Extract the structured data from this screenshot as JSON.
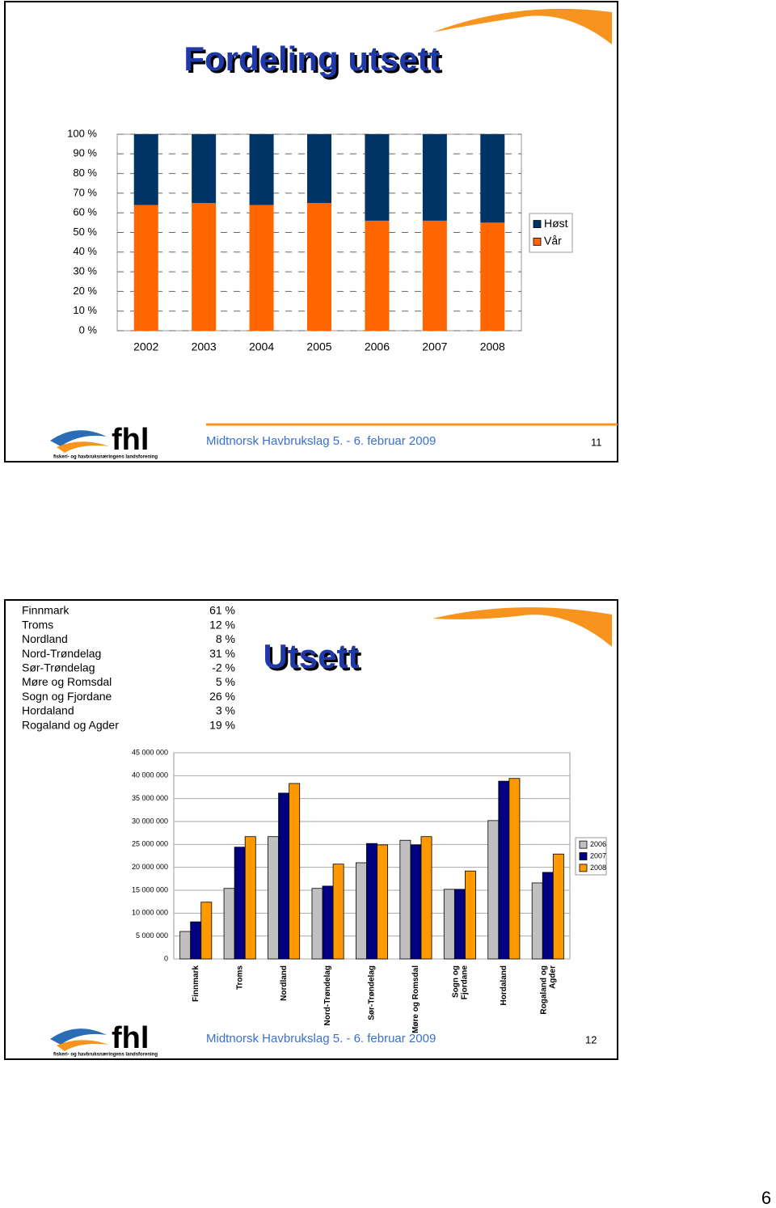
{
  "chart_data": [
    {
      "type": "bar",
      "stacked": true,
      "title": "Fordeling utsett",
      "categories": [
        "2002",
        "2003",
        "2004",
        "2005",
        "2006",
        "2007",
        "2008"
      ],
      "series": [
        {
          "name": "Vår",
          "color": "#ff6600",
          "values": [
            64,
            65,
            64,
            65,
            56,
            56,
            55
          ]
        },
        {
          "name": "Høst",
          "color": "#003366",
          "values": [
            36,
            35,
            36,
            35,
            44,
            44,
            45
          ]
        }
      ],
      "ylim": [
        0,
        100
      ],
      "yticks": [
        {
          "value": 0,
          "label": "0 %"
        },
        {
          "value": 10,
          "label": "10 %"
        },
        {
          "value": 20,
          "label": "20 %"
        },
        {
          "value": 30,
          "label": "30 %"
        },
        {
          "value": 40,
          "label": "40 %"
        },
        {
          "value": 50,
          "label": "50 %"
        },
        {
          "value": 60,
          "label": "60 %"
        },
        {
          "value": 70,
          "label": "70 %"
        },
        {
          "value": 80,
          "label": "80 %"
        },
        {
          "value": 90,
          "label": "90 %"
        },
        {
          "value": 100,
          "label": "100 %"
        }
      ],
      "grid": true,
      "legend": "right"
    },
    {
      "type": "bar",
      "stacked": false,
      "title": "Utsett",
      "categories": [
        "Finnmark",
        "Troms",
        "Nordland",
        "Nord-Trøndelag",
        "Sør-Trøndelag",
        "Møre og Romsdal",
        "Sogn og Fjordane",
        "Hordaland",
        "Rogaland og Agder"
      ],
      "series": [
        {
          "name": "2006",
          "color": "#c0c0c0",
          "values": [
            6000000,
            15400000,
            26700000,
            15400000,
            21000000,
            25900000,
            15200000,
            30200000,
            16600000
          ]
        },
        {
          "name": "2007",
          "color": "#000080",
          "values": [
            8100000,
            24400000,
            36200000,
            15900000,
            25200000,
            24900000,
            15200000,
            38800000,
            18900000
          ]
        },
        {
          "name": "2008",
          "color": "#ff9900",
          "values": [
            12400000,
            26700000,
            38300000,
            20700000,
            24900000,
            26700000,
            19200000,
            39400000,
            22900000
          ]
        }
      ],
      "ylim": [
        0,
        45000000
      ],
      "yticks": [
        0,
        {
          "value": 5000000,
          "label": "5 000 000"
        },
        {
          "value": 10000000,
          "label": "10 000 000"
        },
        {
          "value": 15000000,
          "label": "15 000 000"
        },
        {
          "value": 20000000,
          "label": "20 000 000"
        },
        {
          "value": 25000000,
          "label": "25 000 000"
        },
        {
          "value": 30000000,
          "label": "30 000 000"
        },
        {
          "value": 35000000,
          "label": "35 000 000"
        },
        {
          "value": 40000000,
          "label": "40 000 000"
        },
        {
          "value": 45000000,
          "label": "45 000 000"
        }
      ],
      "grid": true,
      "legend": "right"
    }
  ],
  "table": {
    "rows": [
      [
        "Finnmark",
        "61 %"
      ],
      [
        "Troms",
        "12 %"
      ],
      [
        "Nordland",
        "8 %"
      ],
      [
        "Nord-Trøndelag",
        "31 %"
      ],
      [
        "Sør-Trøndelag",
        "-2 %"
      ],
      [
        "Møre og Romsdal",
        "5 %"
      ],
      [
        "Sogn og Fjordane",
        "26 %"
      ],
      [
        "Hordaland",
        "3 %"
      ],
      [
        "Rogaland og Agder",
        "19 %"
      ]
    ]
  },
  "slides": [
    {
      "logo": "fhl",
      "logo_subtitle": "fiskeri- og havbruksnæringens landsforening",
      "footer": "Midtnorsk Havbrukslag 5. - 6. februar 2009",
      "number": "11"
    },
    {
      "logo": "fhl",
      "logo_subtitle": "fiskeri- og havbruksnæringens landsforening",
      "footer": "Midtnorsk Havbrukslag 5. - 6. februar 2009",
      "number": "12"
    }
  ],
  "page_number": "6"
}
